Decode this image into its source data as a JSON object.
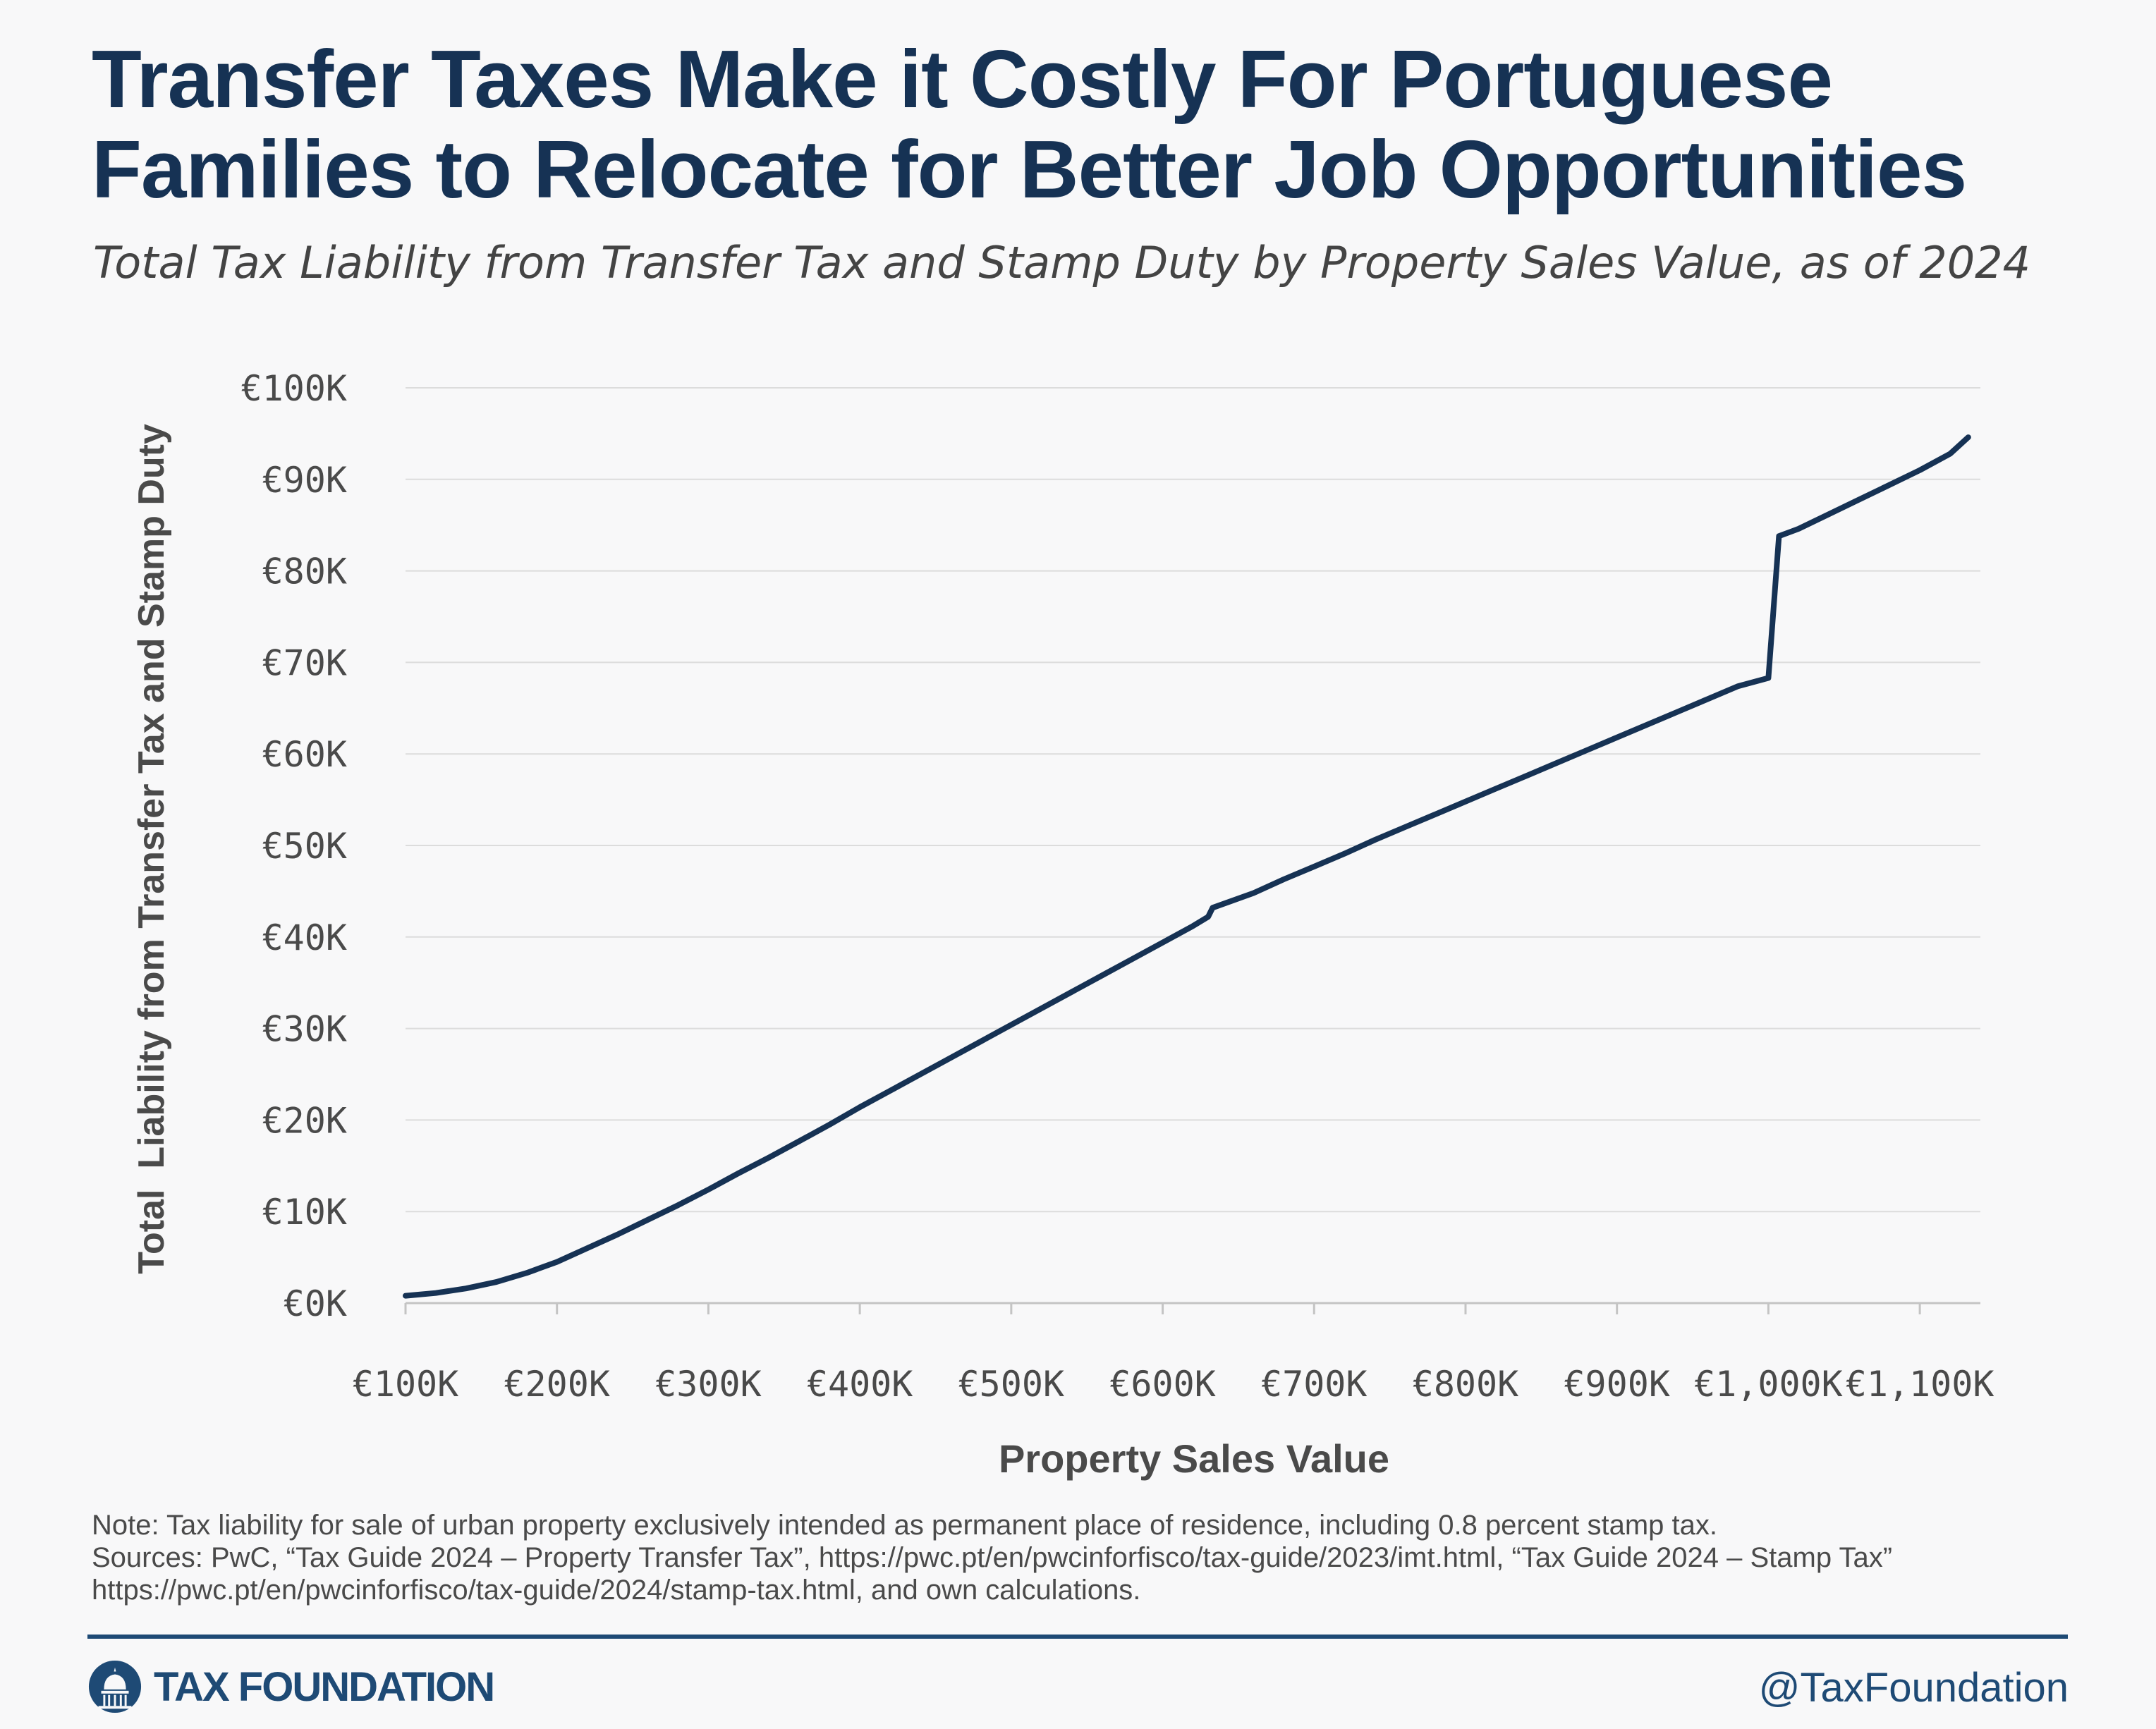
{
  "header": {
    "title": "Transfer Taxes Make it Costly For Portuguese Families to Relocate for Better Job Opportunities",
    "subtitle": "Total Tax Liability from Transfer Tax and Stamp Duty by Property Sales Value, as of 2024"
  },
  "chart_data": {
    "type": "line",
    "title": "Transfer Taxes Make it Costly For Portuguese Families to Relocate for Better Job Opportunities",
    "subtitle": "Total Tax Liability from Transfer Tax and Stamp Duty by Property Sales Value, as of 2024",
    "xlabel": "Property Sales Value",
    "ylabel": "Total  Liability from Transfer Tax and Stamp Duty",
    "xlim": [
      100000,
      1140000
    ],
    "ylim": [
      0,
      100000
    ],
    "x_ticks": [
      100000,
      200000,
      300000,
      400000,
      500000,
      600000,
      700000,
      800000,
      900000,
      1000000,
      1100000
    ],
    "x_tick_labels": [
      "€100K",
      "€200K",
      "€300K",
      "€400K",
      "€500K",
      "€600K",
      "€700K",
      "€800K",
      "€900K",
      "€1,000K",
      "€1,100K"
    ],
    "y_ticks": [
      0,
      10000,
      20000,
      30000,
      40000,
      50000,
      60000,
      70000,
      80000,
      90000,
      100000
    ],
    "y_tick_labels": [
      "€0K",
      "€10K",
      "€20K",
      "€30K",
      "€40K",
      "€50K",
      "€60K",
      "€70K",
      "€80K",
      "€90K",
      "€100K"
    ],
    "grid": true,
    "series": [
      {
        "color": "#163254",
        "points": [
          [
            100000,
            800
          ],
          [
            120000,
            1100
          ],
          [
            140000,
            1600
          ],
          [
            160000,
            2300
          ],
          [
            180000,
            3300
          ],
          [
            200000,
            4500
          ],
          [
            220000,
            6000
          ],
          [
            240000,
            7500
          ],
          [
            260000,
            9100
          ],
          [
            280000,
            10700
          ],
          [
            300000,
            12400
          ],
          [
            320000,
            14200
          ],
          [
            340000,
            15900
          ],
          [
            360000,
            17700
          ],
          [
            380000,
            19500
          ],
          [
            400000,
            21400
          ],
          [
            420000,
            23200
          ],
          [
            440000,
            25000
          ],
          [
            460000,
            26800
          ],
          [
            480000,
            28600
          ],
          [
            500000,
            30400
          ],
          [
            520000,
            32200
          ],
          [
            540000,
            34000
          ],
          [
            560000,
            35800
          ],
          [
            580000,
            37600
          ],
          [
            600000,
            39400
          ],
          [
            620000,
            41200
          ],
          [
            630000,
            42200
          ],
          [
            633000,
            43200
          ],
          [
            660000,
            44800
          ],
          [
            680000,
            46300
          ],
          [
            700000,
            47700
          ],
          [
            720000,
            49100
          ],
          [
            740000,
            50600
          ],
          [
            760000,
            52000
          ],
          [
            780000,
            53400
          ],
          [
            800000,
            54800
          ],
          [
            820000,
            56200
          ],
          [
            840000,
            57600
          ],
          [
            860000,
            59000
          ],
          [
            880000,
            60400
          ],
          [
            900000,
            61800
          ],
          [
            920000,
            63200
          ],
          [
            940000,
            64600
          ],
          [
            960000,
            66000
          ],
          [
            980000,
            67400
          ],
          [
            1000000,
            68300
          ],
          [
            1007000,
            83800
          ],
          [
            1020000,
            84600
          ],
          [
            1040000,
            86200
          ],
          [
            1060000,
            87800
          ],
          [
            1080000,
            89400
          ],
          [
            1100000,
            91000
          ],
          [
            1120000,
            92800
          ],
          [
            1132000,
            94600
          ]
        ]
      }
    ]
  },
  "footer": {
    "note": "Note: Tax liability for sale of urban property exclusively intended as permanent place of residence, including 0.8 percent stamp tax.",
    "sources_line1": "Sources: PwC, “Tax Guide 2024 – Property Transfer Tax”, https://pwc.pt/en/pwcinforfisco/tax-guide/2023/imt.html, “Tax Guide 2024 – Stamp Tax”",
    "sources_line2": "https://pwc.pt/en/pwcinforfisco/tax-guide/2024/stamp-tax.html, and own calculations.",
    "logo_text": "TAX FOUNDATION",
    "logo_icon": "capitol-dome-icon",
    "handle": "@TaxFoundation"
  },
  "colors": {
    "title": "#163254",
    "line": "#163254",
    "brand": "#1e4a75",
    "grid": "#dcdcdc",
    "axis_text": "#4a4a4a"
  }
}
